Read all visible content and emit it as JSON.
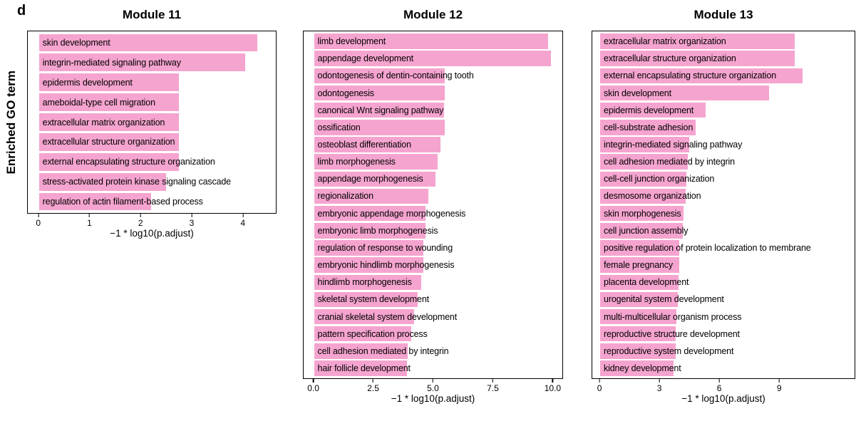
{
  "figure": {
    "panel_letter": "d",
    "y_axis_label": "Enriched GO term",
    "bar_color": "#F5A4CF"
  },
  "chart_data": [
    {
      "type": "bar",
      "orientation": "horizontal",
      "title": "Module 11",
      "xlabel": "−1 * log10(p.adjust)",
      "ylabel": "Enriched GO term",
      "grid": false,
      "legend": false,
      "xlim": [
        0,
        4.66
      ],
      "zero_frac": 0.045,
      "unit_frac": 0.205,
      "ticks": [
        {
          "value": 0,
          "label": "0"
        },
        {
          "value": 1,
          "label": "1"
        },
        {
          "value": 2,
          "label": "2"
        },
        {
          "value": 3,
          "label": "3"
        },
        {
          "value": 4,
          "label": "4"
        }
      ],
      "categories": [
        "skin development",
        "integrin-mediated signaling pathway",
        "epidermis development",
        "ameboidal-type cell migration",
        "extracellular matrix organization",
        "extracellular structure organization",
        "external encapsulating structure organization",
        "stress-activated protein kinase signaling cascade",
        "regulation of actin filament-based process"
      ],
      "values": [
        4.3,
        4.05,
        2.75,
        2.75,
        2.75,
        2.75,
        2.75,
        2.5,
        2.2
      ]
    },
    {
      "type": "bar",
      "orientation": "horizontal",
      "title": "Module 12",
      "xlabel": "−1 * log10(p.adjust)",
      "ylabel": "Enriched GO term",
      "grid": false,
      "legend": false,
      "xlim": [
        0,
        10.4
      ],
      "zero_frac": 0.04,
      "unit_frac": 0.092,
      "ticks": [
        {
          "value": 0,
          "label": "0.0"
        },
        {
          "value": 2.5,
          "label": "2.5"
        },
        {
          "value": 5,
          "label": "5.0"
        },
        {
          "value": 7.5,
          "label": "7.5"
        },
        {
          "value": 10,
          "label": "10.0"
        }
      ],
      "categories": [
        "limb development",
        "appendage development",
        "odontogenesis of dentin-containing tooth",
        "odontogenesis",
        "canonical Wnt signaling pathway",
        "ossification",
        "osteoblast differentiation",
        "limb morphogenesis",
        "appendage morphogenesis",
        "regionalization",
        "embryonic appendage morphogenesis",
        "embryonic limb morphogenesis",
        "regulation of response to wounding",
        "embryonic hindlimb morphogenesis",
        "hindlimb morphogenesis",
        "skeletal system development",
        "cranial skeletal system development",
        "pattern specification process",
        "cell adhesion mediated by integrin",
        "hair follicle development"
      ],
      "values": [
        9.85,
        9.95,
        5.5,
        5.5,
        5.45,
        5.5,
        5.3,
        5.2,
        5.1,
        4.8,
        4.7,
        4.7,
        4.6,
        4.6,
        4.5,
        4.35,
        4.2,
        4.1,
        3.95,
        3.9
      ]
    },
    {
      "type": "bar",
      "orientation": "horizontal",
      "title": "Module 13",
      "xlabel": "−1 * log10(p.adjust)",
      "ylabel": "Enriched GO term",
      "grid": false,
      "legend": false,
      "xlim": [
        0,
        12.8
      ],
      "zero_frac": 0.03,
      "unit_frac": 0.0757,
      "ticks": [
        {
          "value": 0,
          "label": "0"
        },
        {
          "value": 3,
          "label": "3"
        },
        {
          "value": 6,
          "label": "6"
        },
        {
          "value": 9,
          "label": "9"
        }
      ],
      "categories": [
        "extracellular matrix organization",
        "extracellular structure organization",
        "external encapsulating structure organization",
        "skin development",
        "epidermis development",
        "cell-substrate adhesion",
        "integrin-mediated signaling pathway",
        "cell adhesion mediated by integrin",
        "cell-cell junction organization",
        "desmosome organization",
        "skin morphogenesis",
        "cell junction assembly",
        "positive regulation of protein localization to membrane",
        "female pregnancy",
        "placenta development",
        "urogenital system development",
        "multi-multicellular organism process",
        "reproductive structure development",
        "reproductive system development",
        "kidney development"
      ],
      "values": [
        9.8,
        9.8,
        10.2,
        8.5,
        5.3,
        4.8,
        4.5,
        4.4,
        4.35,
        4.3,
        4.2,
        4.15,
        4.0,
        4.0,
        3.95,
        3.9,
        3.85,
        3.8,
        3.8,
        3.7
      ]
    }
  ]
}
